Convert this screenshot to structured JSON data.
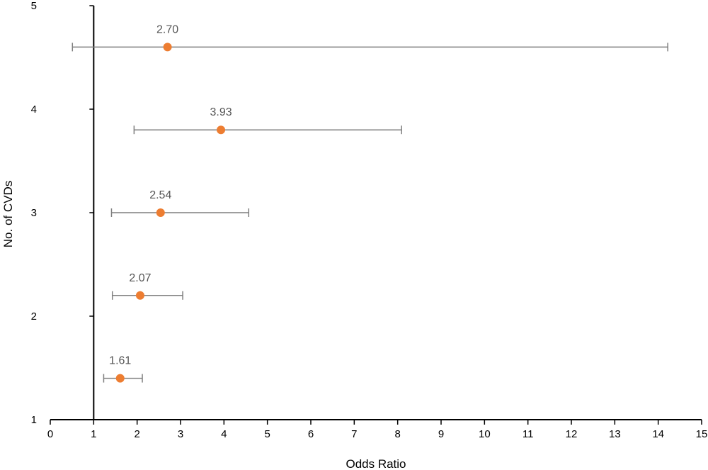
{
  "chart_data": {
    "type": "scatter",
    "title": "",
    "xlabel": "Odds Ratio",
    "ylabel": "No. of CVDs",
    "xlim": [
      0,
      15
    ],
    "ylim": [
      1,
      5
    ],
    "x_ticks": [
      "0",
      "1",
      "2",
      "3",
      "4",
      "5",
      "6",
      "7",
      "8",
      "9",
      "10",
      "11",
      "12",
      "13",
      "14",
      "15"
    ],
    "y_ticks": [
      "1",
      "2",
      "3",
      "4",
      "5"
    ],
    "y_axis_crosses_x": 1,
    "grid": false,
    "legend": "none",
    "points": [
      {
        "x": 1.61,
        "y": 1.4,
        "label": "1.61",
        "ci_low": 1.23,
        "ci_high": 2.12
      },
      {
        "x": 2.07,
        "y": 2.2,
        "label": "2.07",
        "ci_low": 1.43,
        "ci_high": 3.05
      },
      {
        "x": 2.54,
        "y": 3.0,
        "label": "2.54",
        "ci_low": 1.41,
        "ci_high": 4.57
      },
      {
        "x": 3.93,
        "y": 3.8,
        "label": "3.93",
        "ci_low": 1.93,
        "ci_high": 8.09
      },
      {
        "x": 2.7,
        "y": 4.6,
        "label": "2.70",
        "ci_low": 0.51,
        "ci_high": 14.22
      }
    ],
    "colors": {
      "point": "#ED7D31",
      "error_bar": "#7F7F7F",
      "axis": "#000000",
      "label": "#555555"
    }
  }
}
